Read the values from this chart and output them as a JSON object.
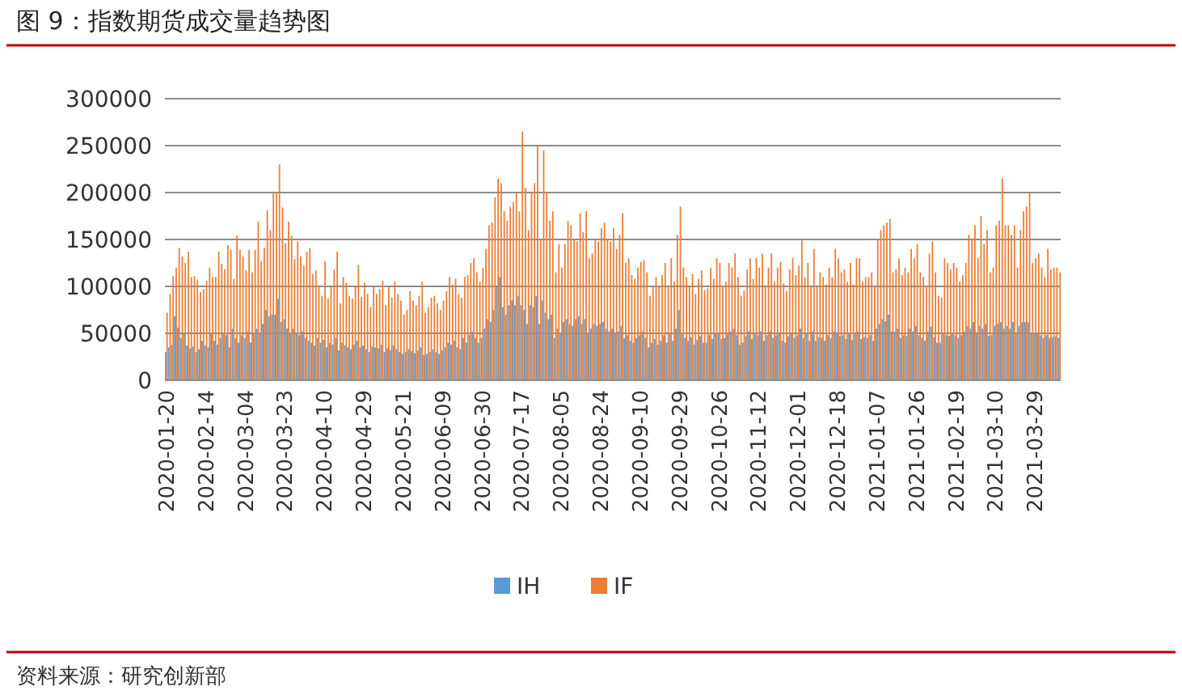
{
  "chart_data": {
    "type": "bar",
    "title": "图 9：指数期货成交量趋势图",
    "annotations": [
      "资料来源：研究创新部"
    ],
    "categories": [
      "2020-01-20",
      null,
      null,
      null,
      null,
      null,
      null,
      null,
      null,
      null,
      null,
      null,
      null,
      "2020-02-14",
      null,
      null,
      null,
      null,
      null,
      null,
      null,
      null,
      null,
      null,
      null,
      null,
      "2020-03-04",
      null,
      null,
      null,
      null,
      null,
      null,
      null,
      null,
      null,
      null,
      null,
      null,
      "2020-03-23",
      null,
      null,
      null,
      null,
      null,
      null,
      null,
      null,
      null,
      null,
      null,
      null,
      "2020-04-10",
      null,
      null,
      null,
      null,
      null,
      null,
      null,
      null,
      null,
      null,
      null,
      null,
      "2020-04-29",
      null,
      null,
      null,
      null,
      null,
      null,
      null,
      null,
      null,
      null,
      null,
      null,
      "2020-05-21",
      null,
      null,
      null,
      null,
      null,
      null,
      null,
      null,
      null,
      null,
      null,
      null,
      "2020-06-09",
      null,
      null,
      null,
      null,
      null,
      null,
      null,
      null,
      null,
      null,
      null,
      null,
      "2020-06-30",
      null,
      null,
      null,
      null,
      null,
      null,
      null,
      null,
      null,
      null,
      null,
      null,
      "2020-07-17",
      null,
      null,
      null,
      null,
      null,
      null,
      null,
      null,
      null,
      null,
      null,
      null,
      "2020-08-05",
      null,
      null,
      null,
      null,
      null,
      null,
      null,
      null,
      null,
      null,
      null,
      null,
      "2020-08-24",
      null,
      null,
      null,
      null,
      null,
      null,
      null,
      null,
      null,
      null,
      null,
      null,
      "2020-09-10",
      null,
      null,
      null,
      null,
      null,
      null,
      null,
      null,
      null,
      null,
      null,
      null,
      "2020-09-29",
      null,
      null,
      null,
      null,
      null,
      null,
      null,
      null,
      null,
      null,
      null,
      null,
      "2020-10-26",
      null,
      null,
      null,
      null,
      null,
      null,
      null,
      null,
      null,
      null,
      null,
      null,
      "2020-11-12",
      null,
      null,
      null,
      null,
      null,
      null,
      null,
      null,
      null,
      null,
      null,
      null,
      "2020-12-01",
      null,
      null,
      null,
      null,
      null,
      null,
      null,
      null,
      null,
      null,
      null,
      null,
      "2020-12-18",
      null,
      null,
      null,
      null,
      null,
      null,
      null,
      null,
      null,
      null,
      null,
      null,
      "2021-01-07",
      null,
      null,
      null,
      null,
      null,
      null,
      null,
      null,
      null,
      null,
      null,
      null,
      "2021-01-26",
      null,
      null,
      null,
      null,
      null,
      null,
      null,
      null,
      null,
      null,
      null,
      null,
      "2021-02-19",
      null,
      null,
      null,
      null,
      null,
      null,
      null,
      null,
      null,
      null,
      null,
      null,
      "2021-03-10",
      null,
      null,
      null,
      null,
      null,
      null,
      null,
      null,
      null,
      null,
      null,
      null,
      "2021-03-29",
      null,
      null,
      null,
      null,
      null,
      null,
      null,
      null
    ],
    "series": [
      {
        "name": "IH",
        "color": "#5b9bd5",
        "values": [
          30000,
          35000,
          38000,
          68000,
          56000,
          45000,
          51000,
          37000,
          34000,
          36000,
          30000,
          33000,
          42000,
          37000,
          35000,
          50000,
          42000,
          38000,
          45000,
          50000,
          48000,
          35000,
          55000,
          45000,
          40000,
          48000,
          45000,
          52000,
          40000,
          50000,
          55000,
          50000,
          60000,
          75000,
          68000,
          70000,
          70000,
          87000,
          62000,
          65000,
          55000,
          50000,
          55000,
          50000,
          48000,
          52000,
          45000,
          42000,
          40000,
          37000,
          45000,
          40000,
          43000,
          35000,
          40000,
          38000,
          45000,
          32000,
          40000,
          37000,
          35000,
          33000,
          38000,
          42000,
          35000,
          37000,
          33000,
          30000,
          36000,
          35000,
          34000,
          38000,
          30000,
          34000,
          32000,
          37000,
          33000,
          30000,
          28000,
          30000,
          33000,
          31000,
          29000,
          32000,
          35000,
          27000,
          28000,
          30000,
          33000,
          30000,
          28000,
          32000,
          35000,
          40000,
          38000,
          42000,
          35000,
          33000,
          45000,
          40000,
          48000,
          52000,
          45000,
          40000,
          45000,
          55000,
          65000,
          62000,
          75000,
          100000,
          110000,
          78000,
          70000,
          80000,
          85000,
          80000,
          90000,
          80000,
          75000,
          60000,
          80000,
          78000,
          90000,
          60000,
          85000,
          72000,
          65000,
          70000,
          45000,
          55000,
          50000,
          62000,
          65000,
          60000,
          58000,
          65000,
          68000,
          60000,
          65000,
          50000,
          55000,
          60000,
          58000,
          60000,
          62000,
          55000,
          52000,
          55000,
          50000,
          52000,
          58000,
          45000,
          48000,
          42000,
          40000,
          45000,
          48000,
          52000,
          45000,
          35000,
          40000,
          44000,
          38000,
          42000,
          48000,
          40000,
          50000,
          42000,
          55000,
          75000,
          50000,
          45000,
          42000,
          46000,
          38000,
          43000,
          47000,
          40000,
          40000,
          48000,
          44000,
          50000,
          50000,
          44000,
          45000,
          50000,
          52000,
          55000,
          48000,
          38000,
          40000,
          47000,
          52000,
          44000,
          50000,
          48000,
          52000,
          42000,
          48000,
          52000,
          45000,
          48000,
          50000,
          42000,
          40000,
          47000,
          50000,
          45000,
          48000,
          55000,
          45000,
          50000,
          42000,
          52000,
          42000,
          46000,
          45000,
          42000,
          48000,
          45000,
          52000,
          50000,
          47000,
          48000,
          44000,
          50000,
          43000,
          50000,
          52000,
          44000,
          46000,
          45000,
          48000,
          42000,
          55000,
          60000,
          65000,
          63000,
          70000,
          52000,
          52000,
          55000,
          45000,
          48000,
          47000,
          55000,
          52000,
          58000,
          48000,
          45000,
          42000,
          52000,
          57000,
          46000,
          40000,
          40000,
          50000,
          48000,
          47000,
          50000,
          48000,
          45000,
          48000,
          52000,
          58000,
          55000,
          62000,
          50000,
          58000,
          55000,
          60000,
          47000,
          48000,
          58000,
          60000,
          62000,
          55000,
          58000,
          55000,
          62000,
          50000,
          58000,
          62000,
          62000,
          62000,
          50000,
          50000,
          50000,
          48000,
          45000,
          48000,
          45000,
          46000,
          47000,
          45000
        ]
      },
      {
        "name": "IF",
        "color": "#ed7d31",
        "values": [
          72000,
          92000,
          111000,
          120000,
          141000,
          132000,
          125000,
          137000,
          110000,
          111000,
          107000,
          94000,
          97000,
          106000,
          120000,
          110000,
          110000,
          137000,
          124000,
          118000,
          144000,
          139000,
          108000,
          154000,
          139000,
          132000,
          117000,
          139000,
          115000,
          139000,
          169000,
          127000,
          141000,
          181000,
          160000,
          200000,
          200000,
          230000,
          184000,
          146000,
          169000,
          154000,
          129000,
          148000,
          132000,
          122000,
          137000,
          141000,
          113000,
          117000,
          101000,
          90000,
          127000,
          87000,
          101000,
          118000,
          137000,
          82000,
          110000,
          104000,
          90000,
          87000,
          100000,
          123000,
          89000,
          104000,
          92000,
          78000,
          100000,
          92000,
          97000,
          106000,
          80000,
          100000,
          88000,
          105000,
          92000,
          85000,
          70000,
          75000,
          95000,
          85000,
          80000,
          90000,
          105000,
          72000,
          78000,
          88000,
          90000,
          82000,
          75000,
          85000,
          95000,
          110000,
          102000,
          108000,
          92000,
          88000,
          110000,
          112000,
          125000,
          130000,
          115000,
          105000,
          120000,
          140000,
          165000,
          168000,
          195000,
          215000,
          210000,
          180000,
          170000,
          185000,
          190000,
          200000,
          180000,
          265000,
          205000,
          160000,
          200000,
          210000,
          250000,
          150000,
          245000,
          200000,
          170000,
          180000,
          115000,
          145000,
          120000,
          145000,
          170000,
          165000,
          150000,
          148000,
          178000,
          158000,
          180000,
          130000,
          135000,
          150000,
          148000,
          162000,
          168000,
          150000,
          148000,
          162000,
          140000,
          155000,
          178000,
          125000,
          130000,
          112000,
          108000,
          120000,
          126000,
          128000,
          115000,
          90000,
          100000,
          110000,
          100000,
          112000,
          125000,
          100000,
          130000,
          105000,
          155000,
          185000,
          120000,
          110000,
          100000,
          113000,
          92000,
          108000,
          117000,
          96000,
          98000,
          120000,
          108000,
          130000,
          125000,
          100000,
          105000,
          125000,
          120000,
          135000,
          110000,
          90000,
          95000,
          118000,
          130000,
          108000,
          130000,
          120000,
          135000,
          100000,
          120000,
          135000,
          105000,
          120000,
          126000,
          103000,
          95000,
          118000,
          130000,
          112000,
          122000,
          150000,
          110000,
          125000,
          100000,
          140000,
          100000,
          115000,
          110000,
          102000,
          120000,
          110000,
          140000,
          130000,
          115000,
          118000,
          105000,
          125000,
          102000,
          130000,
          130000,
          105000,
          110000,
          110000,
          115000,
          100000,
          150000,
          160000,
          165000,
          168000,
          172000,
          115000,
          118000,
          130000,
          112000,
          120000,
          115000,
          140000,
          130000,
          145000,
          115000,
          110000,
          100000,
          135000,
          148000,
          115000,
          90000,
          88000,
          130000,
          125000,
          118000,
          125000,
          120000,
          105000,
          112000,
          125000,
          155000,
          150000,
          165000,
          130000,
          175000,
          145000,
          160000,
          115000,
          120000,
          165000,
          170000,
          215000,
          165000,
          165000,
          155000,
          165000,
          120000,
          160000,
          180000,
          185000,
          200000,
          125000,
          130000,
          135000,
          120000,
          110000,
          140000,
          118000,
          120000,
          120000,
          115000
        ]
      }
    ],
    "ylim": [
      0,
      300000
    ],
    "yticks": [
      0,
      50000,
      100000,
      150000,
      200000,
      250000,
      300000
    ],
    "grid": "y",
    "legend": "bottom"
  }
}
